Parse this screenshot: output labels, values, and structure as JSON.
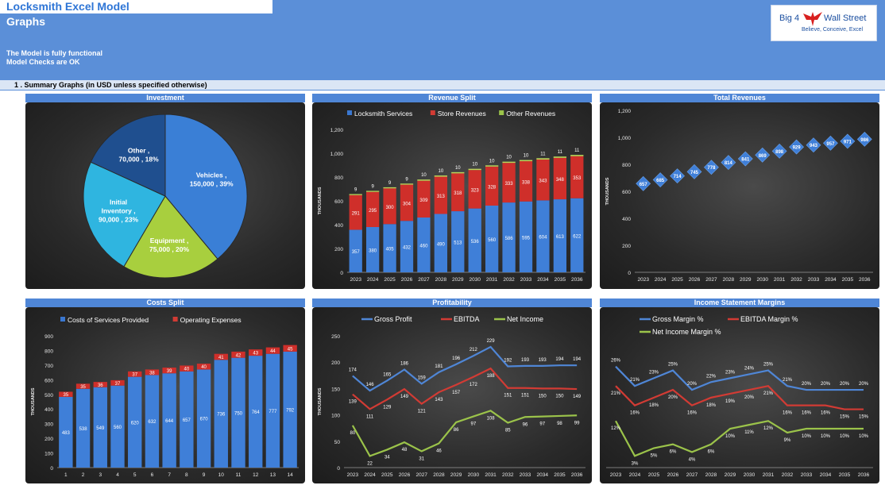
{
  "header": {
    "app_title": "Locksmith Excel Model",
    "sheet_title": "Graphs",
    "status_line_1": "The Model is fully functional",
    "status_line_2": "Model Checks are OK",
    "logo_text_left": "Big 4",
    "logo_text_right": "Wall Street",
    "logo_tagline": "Believe, Conceive, Excel"
  },
  "section": {
    "title": "1 . Summary Graphs (in USD unless specified otherwise)"
  },
  "colors": {
    "header_bg": "#5b8fd8",
    "panel_title_bg": "#4f86d6",
    "blue_series": "#3a77d0",
    "red_series": "#d23b34",
    "green_series": "#9bc34a"
  },
  "chart_data": [
    {
      "type": "pie",
      "title": "Investment",
      "slices": [
        {
          "label": "Vehicles",
          "value": 150000,
          "percent": "39%",
          "display": "Vehicles , 150,000 , 39%"
        },
        {
          "label": "Equipment",
          "value": 75000,
          "percent": "20%",
          "display": "Equipment , 75,000 , 20%"
        },
        {
          "label": "Initial Inventory",
          "value": 90000,
          "percent": "23%",
          "display": "Initial Inventory , 90,000 , 23%"
        },
        {
          "label": "Other",
          "value": 70000,
          "percent": "18%",
          "display": "Other , 70,000 , 18%"
        }
      ]
    },
    {
      "type": "bar",
      "stacked": true,
      "title": "Revenue Split",
      "ylabel": "THOUSANDS",
      "ylim": [
        0,
        1200
      ],
      "yticks": [
        "0",
        "200",
        "400",
        "600",
        "800",
        "1,000",
        "1,200"
      ],
      "categories": [
        "2023",
        "2024",
        "2025",
        "2026",
        "2027",
        "2028",
        "2029",
        "2030",
        "2031",
        "2032",
        "2033",
        "2034",
        "2035",
        "2036"
      ],
      "series": [
        {
          "name": "Locksmith Services",
          "values": [
            357,
            380,
            405,
            432,
            460,
            490,
            513,
            536,
            560,
            586,
            595,
            604,
            613,
            622
          ]
        },
        {
          "name": "Store Revenues",
          "values": [
            291,
            295,
            300,
            304,
            309,
            313,
            318,
            323,
            328,
            333,
            338,
            343,
            348,
            353
          ]
        },
        {
          "name": "Other Revenues",
          "values": [
            9,
            9,
            9,
            9,
            10,
            10,
            10,
            10,
            10,
            10,
            10,
            11,
            11,
            11
          ]
        }
      ],
      "legend": "top"
    },
    {
      "type": "scatter",
      "title": "Total Revenues",
      "ylabel": "THOUSANDS",
      "ylim": [
        0,
        1200
      ],
      "yticks": [
        "0",
        "200",
        "400",
        "600",
        "800",
        "1,000",
        "1,200"
      ],
      "categories": [
        "2023",
        "2024",
        "2025",
        "2026",
        "2027",
        "2028",
        "2029",
        "2030",
        "2031",
        "2032",
        "2033",
        "2034",
        "2035",
        "2036"
      ],
      "values": [
        657,
        685,
        714,
        745,
        778,
        814,
        841,
        869,
        898,
        929,
        943,
        957,
        971,
        986
      ]
    },
    {
      "type": "bar",
      "stacked": true,
      "title": "Costs Split",
      "ylabel": "THOUSANDS",
      "ylim": [
        0,
        900
      ],
      "yticks": [
        "0",
        "100",
        "200",
        "300",
        "400",
        "500",
        "600",
        "700",
        "800",
        "900"
      ],
      "categories": [
        "1",
        "2",
        "3",
        "4",
        "5",
        "6",
        "7",
        "8",
        "9",
        "10",
        "11",
        "12",
        "13",
        "14"
      ],
      "series": [
        {
          "name": "Costs of Services Provided",
          "values": [
            483,
            538,
            549,
            560,
            620,
            632,
            644,
            657,
            670,
            736,
            750,
            764,
            777,
            792
          ]
        },
        {
          "name": "Operating Expenses",
          "values": [
            35,
            35,
            36,
            37,
            37,
            38,
            39,
            40,
            40,
            41,
            42,
            43,
            44,
            45
          ]
        }
      ],
      "legend": "top"
    },
    {
      "type": "line",
      "title": "Profitability",
      "ylabel": "THOUSANDS",
      "ylim": [
        0,
        250
      ],
      "yticks": [
        "0",
        "50",
        "100",
        "150",
        "200",
        "250"
      ],
      "categories": [
        "2023",
        "2024",
        "2025",
        "2026",
        "2027",
        "2028",
        "2029",
        "2030",
        "2031",
        "2032",
        "2033",
        "2034",
        "2035",
        "2036"
      ],
      "series": [
        {
          "name": "Gross Profit",
          "values": [
            174,
            146,
            165,
            186,
            159,
            181,
            196,
            212,
            229,
            192,
            193,
            193,
            194,
            194
          ]
        },
        {
          "name": "EBITDA",
          "values": [
            139,
            111,
            129,
            149,
            121,
            143,
            157,
            172,
            188,
            151,
            151,
            150,
            150,
            149
          ]
        },
        {
          "name": "Net Income",
          "values": [
            80,
            22,
            34,
            48,
            31,
            46,
            86,
            97,
            108,
            85,
            96,
            97,
            98,
            99
          ]
        }
      ],
      "legend": "top"
    },
    {
      "type": "line",
      "title": "Income Statement Margins",
      "categories": [
        "2023",
        "2024",
        "2025",
        "2026",
        "2027",
        "2028",
        "2029",
        "2030",
        "2031",
        "2032",
        "2033",
        "2034",
        "2035",
        "2036"
      ],
      "series": [
        {
          "name": "Gross Margin %",
          "values": [
            26,
            21,
            23,
            25,
            20,
            22,
            23,
            24,
            25,
            21,
            20,
            20,
            20,
            20
          ]
        },
        {
          "name": "EBITDA Margin %",
          "values": [
            21,
            16,
            18,
            20,
            16,
            18,
            19,
            20,
            21,
            16,
            16,
            16,
            15,
            15
          ]
        },
        {
          "name": "Net Income Margin %",
          "values": [
            12,
            3,
            5,
            6,
            4,
            6,
            10,
            11,
            12,
            9,
            10,
            10,
            10,
            10
          ]
        }
      ],
      "legend": "top"
    }
  ]
}
